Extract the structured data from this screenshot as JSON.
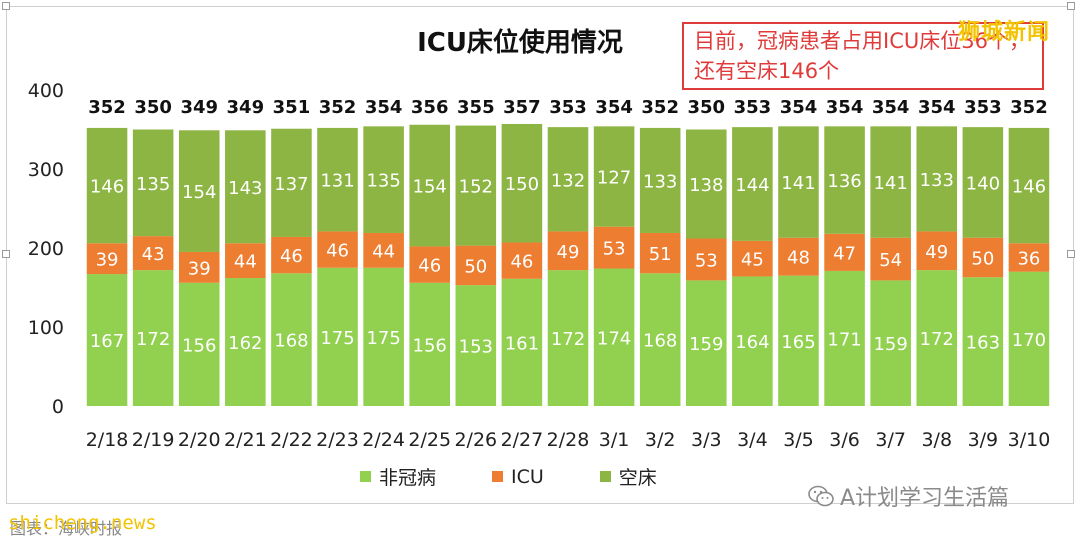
{
  "title": "ICU床位使用情况",
  "callout_text": "目前，冠病患者占用ICU床位36个，还有空床146个",
  "watermark_top": "狮城新闻",
  "footer_source": "shicheng.news",
  "footer_ghost": "图表：海峡时报",
  "wechat_account": "A计划学习生活篇",
  "colors": {
    "non_covid": "#92d050",
    "icu": "#ed7d31",
    "empty": "#8db543",
    "callout": "#e03b3b"
  },
  "chart_data": {
    "type": "bar",
    "stacked": true,
    "categories": [
      "2/18",
      "2/19",
      "2/20",
      "2/21",
      "2/22",
      "2/23",
      "2/24",
      "2/25",
      "2/26",
      "2/27",
      "2/28",
      "3/1",
      "3/2",
      "3/3",
      "3/4",
      "3/5",
      "3/6",
      "3/7",
      "3/8",
      "3/9",
      "3/10"
    ],
    "series": [
      {
        "name": "非冠病",
        "color": "#92d050",
        "values": [
          167,
          172,
          156,
          162,
          168,
          175,
          175,
          156,
          153,
          161,
          172,
          174,
          168,
          159,
          164,
          165,
          171,
          159,
          172,
          163,
          170
        ]
      },
      {
        "name": "ICU",
        "color": "#ed7d31",
        "values": [
          39,
          43,
          39,
          44,
          46,
          46,
          44,
          46,
          50,
          46,
          49,
          53,
          51,
          53,
          45,
          48,
          47,
          54,
          49,
          50,
          36
        ]
      },
      {
        "name": "空床",
        "color": "#8db543",
        "values": [
          146,
          135,
          154,
          143,
          137,
          131,
          135,
          154,
          152,
          150,
          132,
          127,
          133,
          138,
          144,
          141,
          136,
          141,
          133,
          140,
          146
        ]
      }
    ],
    "totals": [
      352,
      350,
      349,
      349,
      351,
      352,
      354,
      356,
      355,
      357,
      353,
      354,
      352,
      350,
      353,
      354,
      354,
      354,
      354,
      353,
      352
    ],
    "ylim": [
      0,
      400
    ],
    "yticks": [
      0,
      100,
      200,
      300,
      400
    ],
    "legend": "bottom",
    "grid": false
  }
}
